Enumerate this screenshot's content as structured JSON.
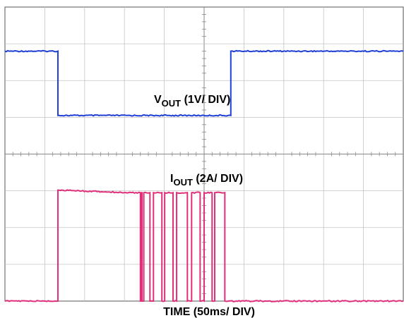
{
  "chart_data": {
    "type": "line",
    "xlabel": "TIME (50ms/ DIV)",
    "x_unit": "ms",
    "x_per_div": 50,
    "xlim": [
      0,
      500
    ],
    "divisions": {
      "x": 10,
      "y": 8
    },
    "grid": true,
    "series": [
      {
        "name": "VOUT (1V/ DIV)",
        "label_main": "V",
        "label_sub": "OUT",
        "label_rest": " (1V/ DIV)",
        "color": "#1f3fd6",
        "volts_per_div": 1,
        "x": [
          0,
          66.5,
          66.5,
          283.5,
          283.5,
          500
        ],
        "y_div": [
          6.8,
          6.8,
          5.05,
          5.05,
          6.8,
          6.8
        ]
      },
      {
        "name": "IOUT (2A/ DIV)",
        "label_main": "I",
        "label_sub": "OUT",
        "label_rest": " (2A/ DIV)",
        "color": "#e0307a",
        "amps_per_div": 2,
        "x": [
          0,
          66.5,
          66.5,
          67.5,
          155,
          170,
          170,
          170.8,
          170.8,
          172,
          172,
          174.3,
          174.3,
          182,
          182,
          186.4,
          186.4,
          197,
          197,
          200.5,
          200.5,
          211,
          211,
          215.5,
          215.5,
          229,
          229,
          234.3,
          234.3,
          245,
          245,
          250,
          250,
          260,
          260,
          263.3,
          263.3,
          276,
          276,
          500
        ],
        "y_div": [
          0,
          0,
          3.02,
          3.02,
          2.95,
          2.95,
          0,
          0,
          2.95,
          2.95,
          0,
          0,
          2.95,
          2.95,
          0,
          0,
          2.95,
          2.95,
          0,
          0,
          2.95,
          2.95,
          0,
          0,
          2.95,
          2.95,
          0,
          0,
          2.95,
          2.95,
          0,
          0,
          2.95,
          2.95,
          0,
          0,
          2.95,
          2.95,
          0,
          0
        ]
      }
    ]
  }
}
